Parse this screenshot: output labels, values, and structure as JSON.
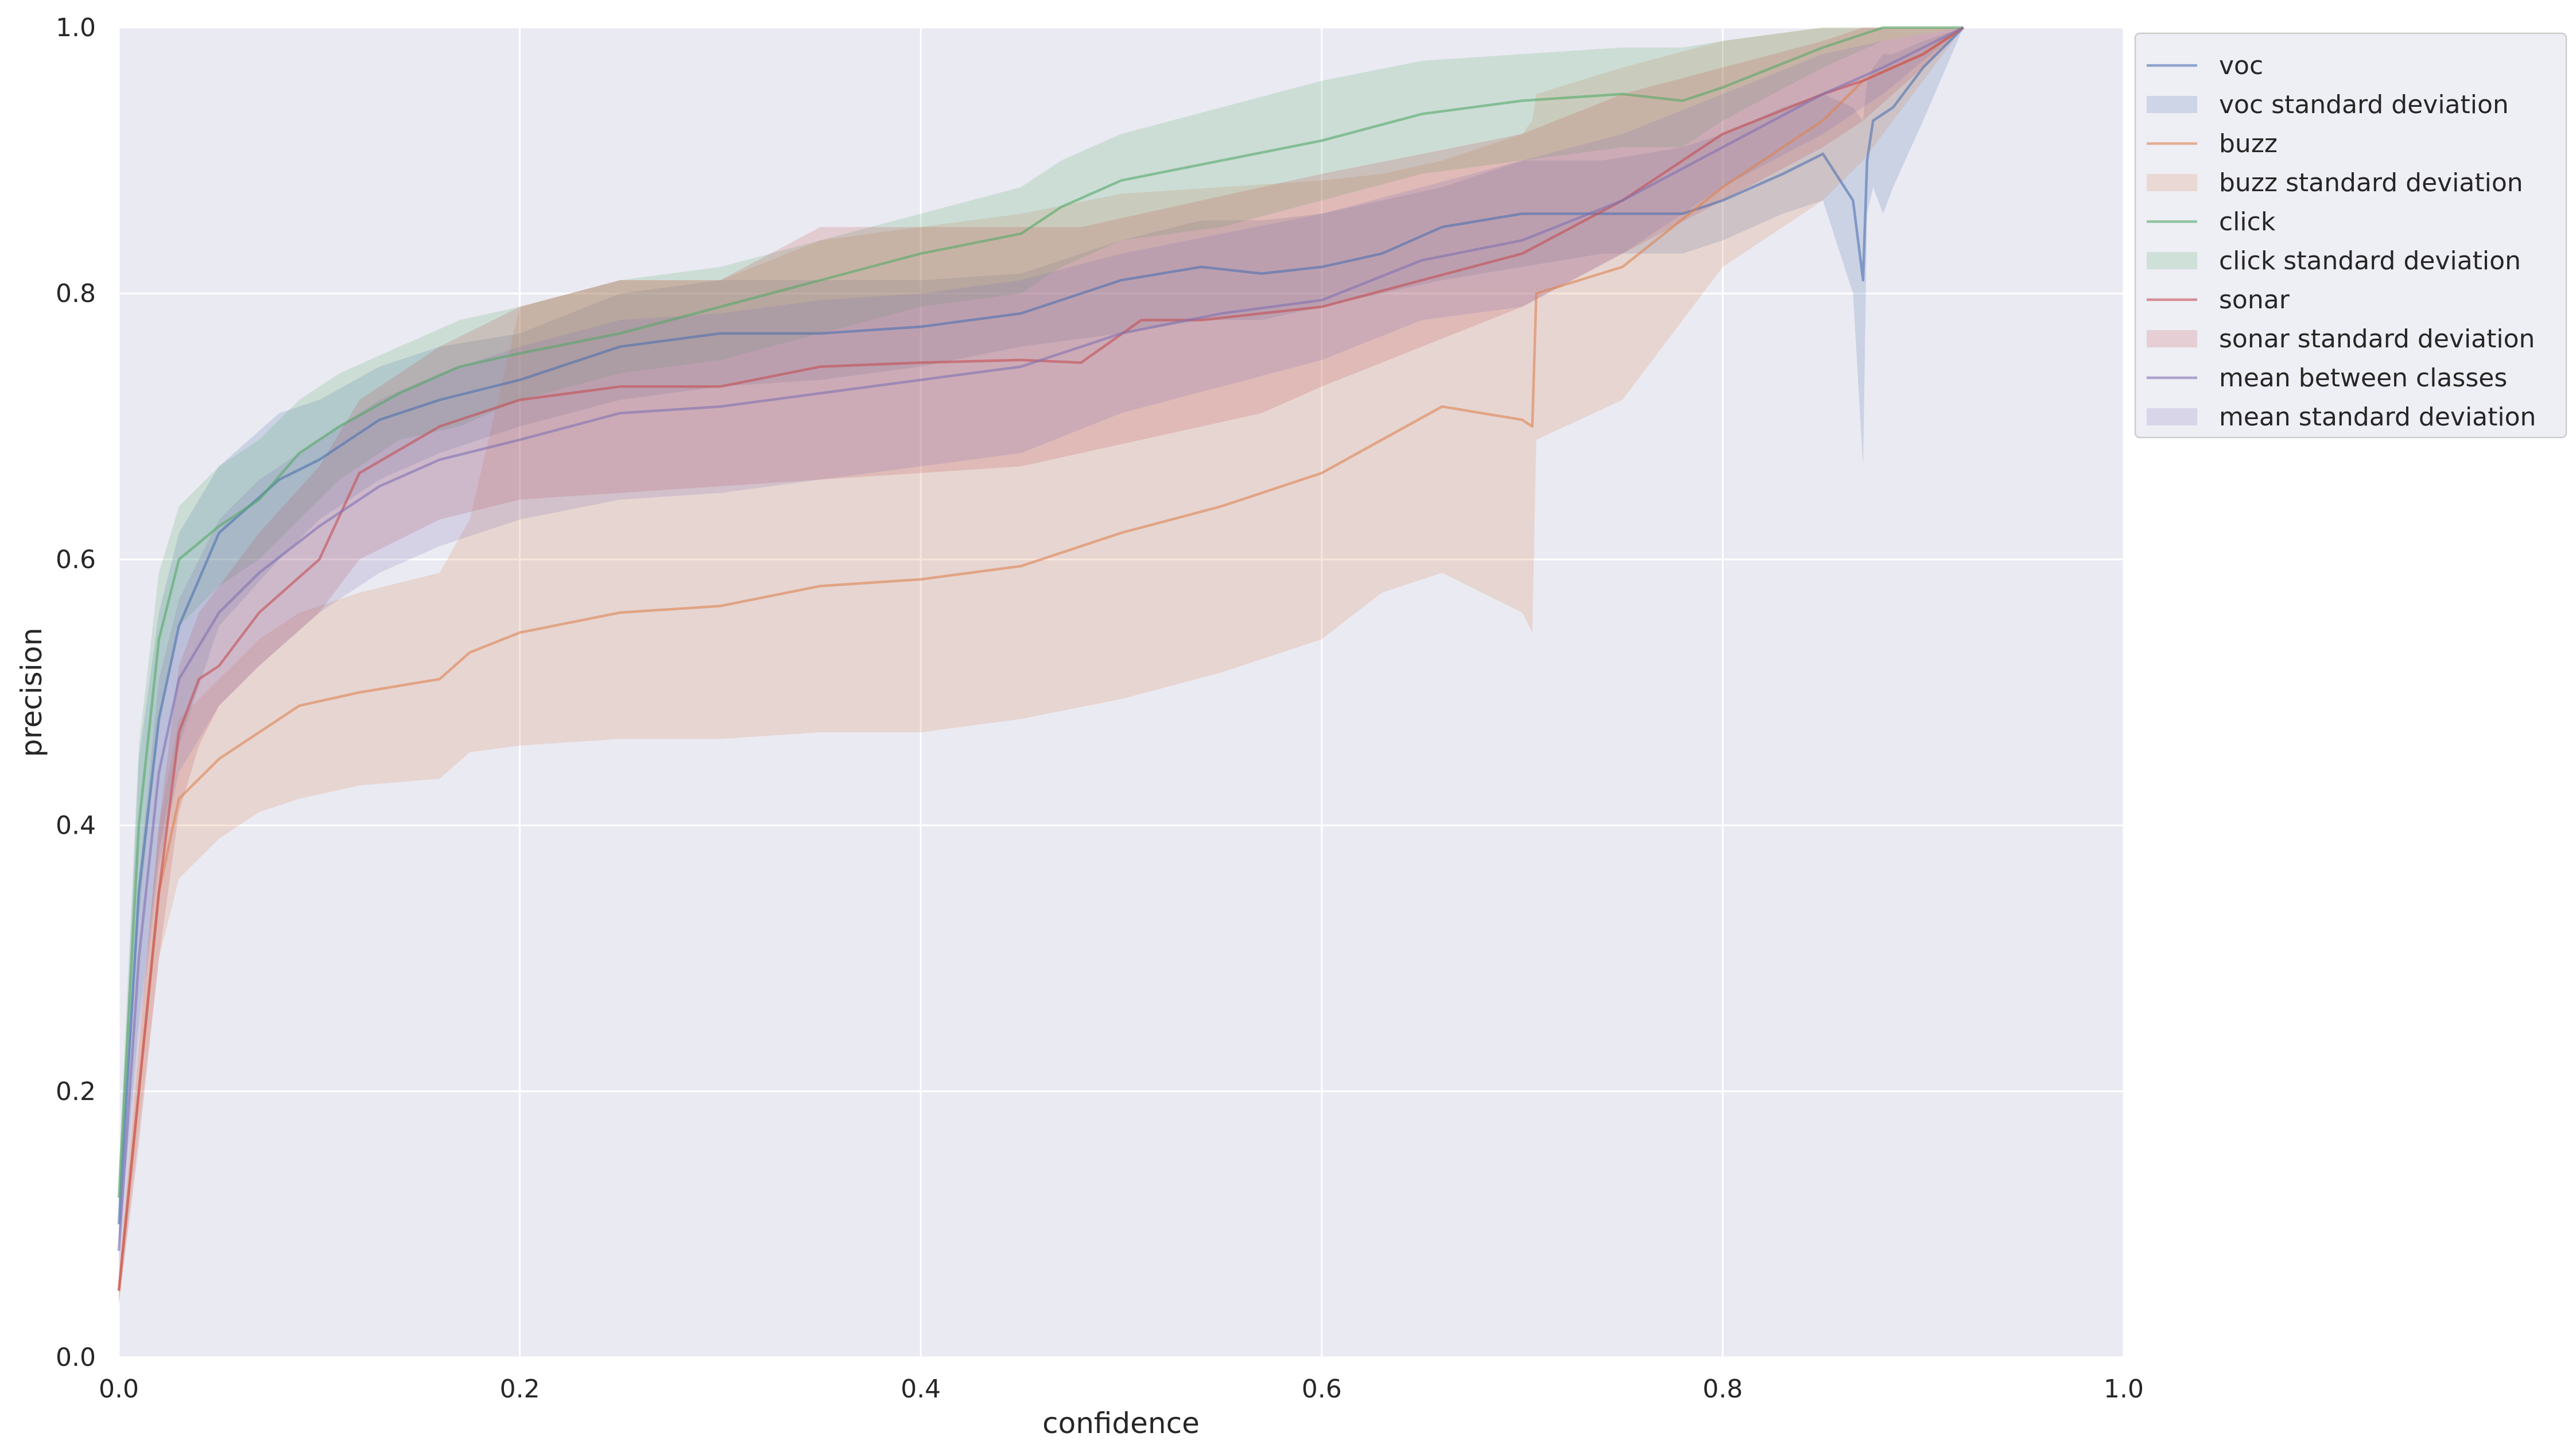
{
  "chart_data": {
    "type": "line",
    "xlabel": "confidence",
    "ylabel": "precision",
    "xlim": [
      0.0,
      1.0
    ],
    "ylim": [
      0.0,
      1.0
    ],
    "x_ticks": [
      "0.0",
      "0.2",
      "0.4",
      "0.6",
      "0.8",
      "1.0"
    ],
    "y_ticks": [
      "0.0",
      "0.2",
      "0.4",
      "0.6",
      "0.8",
      "1.0"
    ],
    "grid": true,
    "background": "#eaeaf2",
    "legend_position": "upper-right-outside",
    "series": [
      {
        "name": "voc",
        "color": "#4c72b0",
        "band_label": "voc standard deviation",
        "x": [
          0.0,
          0.01,
          0.02,
          0.03,
          0.05,
          0.08,
          0.1,
          0.13,
          0.16,
          0.2,
          0.25,
          0.3,
          0.35,
          0.4,
          0.45,
          0.5,
          0.54,
          0.57,
          0.6,
          0.63,
          0.66,
          0.7,
          0.74,
          0.78,
          0.8,
          0.83,
          0.85,
          0.865,
          0.87,
          0.872,
          0.875,
          0.88,
          0.885,
          0.9,
          0.92
        ],
        "y": [
          0.1,
          0.35,
          0.48,
          0.55,
          0.62,
          0.66,
          0.675,
          0.705,
          0.72,
          0.735,
          0.76,
          0.77,
          0.77,
          0.775,
          0.785,
          0.81,
          0.82,
          0.815,
          0.82,
          0.83,
          0.85,
          0.86,
          0.86,
          0.86,
          0.87,
          0.89,
          0.905,
          0.87,
          0.81,
          0.9,
          0.93,
          0.935,
          0.94,
          0.97,
          1.0
        ],
        "y_lower": [
          0.08,
          0.25,
          0.38,
          0.46,
          0.55,
          0.6,
          0.63,
          0.66,
          0.68,
          0.7,
          0.72,
          0.73,
          0.735,
          0.745,
          0.76,
          0.77,
          0.78,
          0.78,
          0.79,
          0.8,
          0.81,
          0.82,
          0.83,
          0.83,
          0.84,
          0.86,
          0.87,
          0.8,
          0.67,
          0.86,
          0.88,
          0.86,
          0.88,
          0.93,
          1.0
        ],
        "y_upper": [
          0.12,
          0.45,
          0.56,
          0.62,
          0.67,
          0.71,
          0.72,
          0.745,
          0.76,
          0.77,
          0.8,
          0.81,
          0.81,
          0.81,
          0.815,
          0.84,
          0.855,
          0.855,
          0.86,
          0.87,
          0.88,
          0.9,
          0.9,
          0.91,
          0.92,
          0.94,
          0.95,
          0.94,
          0.93,
          0.96,
          0.97,
          0.98,
          0.98,
          0.99,
          1.0
        ]
      },
      {
        "name": "buzz",
        "color": "#dd8452",
        "band_label": "buzz standard deviation",
        "x": [
          0.0,
          0.02,
          0.03,
          0.05,
          0.07,
          0.09,
          0.12,
          0.16,
          0.175,
          0.2,
          0.25,
          0.3,
          0.35,
          0.4,
          0.45,
          0.5,
          0.55,
          0.6,
          0.63,
          0.66,
          0.7,
          0.705,
          0.707,
          0.75,
          0.8,
          0.85,
          0.87,
          0.9,
          0.92
        ],
        "y": [
          0.05,
          0.35,
          0.42,
          0.45,
          0.47,
          0.49,
          0.5,
          0.51,
          0.53,
          0.545,
          0.56,
          0.565,
          0.58,
          0.585,
          0.595,
          0.62,
          0.64,
          0.665,
          0.69,
          0.715,
          0.705,
          0.7,
          0.8,
          0.82,
          0.88,
          0.93,
          0.96,
          0.98,
          1.0
        ],
        "y_lower": [
          0.04,
          0.3,
          0.36,
          0.39,
          0.41,
          0.42,
          0.43,
          0.435,
          0.455,
          0.46,
          0.465,
          0.465,
          0.47,
          0.47,
          0.48,
          0.495,
          0.515,
          0.54,
          0.575,
          0.59,
          0.56,
          0.545,
          0.69,
          0.72,
          0.82,
          0.87,
          0.9,
          0.96,
          1.0
        ],
        "y_upper": [
          0.06,
          0.4,
          0.48,
          0.51,
          0.54,
          0.56,
          0.575,
          0.59,
          0.63,
          0.79,
          0.81,
          0.81,
          0.84,
          0.85,
          0.86,
          0.875,
          0.88,
          0.885,
          0.89,
          0.9,
          0.92,
          0.93,
          0.95,
          0.97,
          0.99,
          1.0,
          1.0,
          1.0,
          1.0
        ]
      },
      {
        "name": "click",
        "color": "#55a868",
        "band_label": "click standard deviation",
        "x": [
          0.0,
          0.01,
          0.02,
          0.03,
          0.05,
          0.07,
          0.09,
          0.11,
          0.14,
          0.17,
          0.2,
          0.25,
          0.3,
          0.35,
          0.4,
          0.45,
          0.47,
          0.5,
          0.55,
          0.6,
          0.65,
          0.7,
          0.75,
          0.78,
          0.8,
          0.85,
          0.88,
          0.92
        ],
        "y": [
          0.12,
          0.4,
          0.54,
          0.6,
          0.625,
          0.645,
          0.68,
          0.7,
          0.725,
          0.745,
          0.755,
          0.77,
          0.79,
          0.81,
          0.83,
          0.845,
          0.865,
          0.885,
          0.9,
          0.915,
          0.935,
          0.945,
          0.95,
          0.945,
          0.955,
          0.985,
          1.0,
          1.0
        ],
        "y_lower": [
          0.1,
          0.33,
          0.48,
          0.55,
          0.58,
          0.6,
          0.63,
          0.66,
          0.69,
          0.7,
          0.72,
          0.74,
          0.75,
          0.77,
          0.79,
          0.8,
          0.82,
          0.84,
          0.85,
          0.87,
          0.89,
          0.9,
          0.91,
          0.91,
          0.93,
          0.97,
          0.99,
          1.0
        ],
        "y_upper": [
          0.14,
          0.46,
          0.59,
          0.64,
          0.67,
          0.69,
          0.72,
          0.74,
          0.76,
          0.78,
          0.79,
          0.81,
          0.82,
          0.84,
          0.86,
          0.88,
          0.9,
          0.92,
          0.94,
          0.96,
          0.975,
          0.98,
          0.985,
          0.985,
          0.99,
          1.0,
          1.0,
          1.0
        ]
      },
      {
        "name": "sonar",
        "color": "#c44e52",
        "band_label": "sonar standard deviation",
        "x": [
          0.0,
          0.01,
          0.02,
          0.03,
          0.04,
          0.05,
          0.07,
          0.1,
          0.12,
          0.16,
          0.2,
          0.25,
          0.3,
          0.35,
          0.4,
          0.45,
          0.48,
          0.51,
          0.54,
          0.57,
          0.6,
          0.65,
          0.7,
          0.75,
          0.8,
          0.85,
          0.87,
          0.9,
          0.92
        ],
        "y": [
          0.05,
          0.2,
          0.35,
          0.47,
          0.51,
          0.52,
          0.56,
          0.6,
          0.665,
          0.7,
          0.72,
          0.73,
          0.73,
          0.745,
          0.748,
          0.75,
          0.748,
          0.78,
          0.78,
          0.785,
          0.79,
          0.81,
          0.83,
          0.87,
          0.92,
          0.95,
          0.96,
          0.98,
          1.0
        ],
        "y_lower": [
          0.04,
          0.16,
          0.3,
          0.41,
          0.46,
          0.49,
          0.52,
          0.56,
          0.6,
          0.63,
          0.645,
          0.65,
          0.655,
          0.66,
          0.665,
          0.67,
          0.68,
          0.69,
          0.7,
          0.71,
          0.73,
          0.76,
          0.79,
          0.83,
          0.87,
          0.91,
          0.93,
          0.97,
          1.0
        ],
        "y_upper": [
          0.06,
          0.24,
          0.4,
          0.52,
          0.56,
          0.58,
          0.62,
          0.67,
          0.72,
          0.76,
          0.79,
          0.81,
          0.81,
          0.85,
          0.85,
          0.85,
          0.85,
          0.86,
          0.87,
          0.88,
          0.89,
          0.905,
          0.92,
          0.95,
          0.97,
          0.99,
          1.0,
          1.0,
          1.0
        ]
      },
      {
        "name": "mean between classes",
        "color": "#8172b3",
        "band_label": "mean standard deviation",
        "x": [
          0.0,
          0.01,
          0.02,
          0.03,
          0.05,
          0.07,
          0.1,
          0.13,
          0.16,
          0.2,
          0.25,
          0.3,
          0.35,
          0.4,
          0.45,
          0.5,
          0.55,
          0.6,
          0.65,
          0.7,
          0.75,
          0.8,
          0.85,
          0.88,
          0.92
        ],
        "y": [
          0.08,
          0.3,
          0.44,
          0.51,
          0.56,
          0.59,
          0.625,
          0.655,
          0.675,
          0.69,
          0.71,
          0.715,
          0.725,
          0.735,
          0.745,
          0.77,
          0.785,
          0.795,
          0.825,
          0.84,
          0.87,
          0.91,
          0.95,
          0.97,
          1.0
        ],
        "y_lower": [
          0.06,
          0.24,
          0.37,
          0.44,
          0.49,
          0.52,
          0.56,
          0.59,
          0.61,
          0.63,
          0.645,
          0.65,
          0.66,
          0.67,
          0.68,
          0.71,
          0.73,
          0.75,
          0.78,
          0.79,
          0.83,
          0.88,
          0.92,
          0.95,
          1.0
        ],
        "y_upper": [
          0.1,
          0.36,
          0.51,
          0.57,
          0.63,
          0.66,
          0.69,
          0.72,
          0.74,
          0.76,
          0.78,
          0.785,
          0.795,
          0.8,
          0.81,
          0.83,
          0.845,
          0.86,
          0.88,
          0.9,
          0.92,
          0.95,
          0.98,
          0.99,
          1.0
        ]
      }
    ],
    "legend_entries": [
      {
        "label": "voc",
        "kind": "line",
        "color": "#4c72b0"
      },
      {
        "label": "voc standard deviation",
        "kind": "patch",
        "color": "#4c72b0"
      },
      {
        "label": "buzz",
        "kind": "line",
        "color": "#dd8452"
      },
      {
        "label": "buzz standard deviation",
        "kind": "patch",
        "color": "#dd8452"
      },
      {
        "label": "click",
        "kind": "line",
        "color": "#55a868"
      },
      {
        "label": "click standard deviation",
        "kind": "patch",
        "color": "#55a868"
      },
      {
        "label": "sonar",
        "kind": "line",
        "color": "#c44e52"
      },
      {
        "label": "sonar standard deviation",
        "kind": "patch",
        "color": "#c44e52"
      },
      {
        "label": "mean between classes",
        "kind": "line",
        "color": "#8172b3"
      },
      {
        "label": "mean standard deviation",
        "kind": "patch",
        "color": "#8172b3"
      }
    ]
  }
}
